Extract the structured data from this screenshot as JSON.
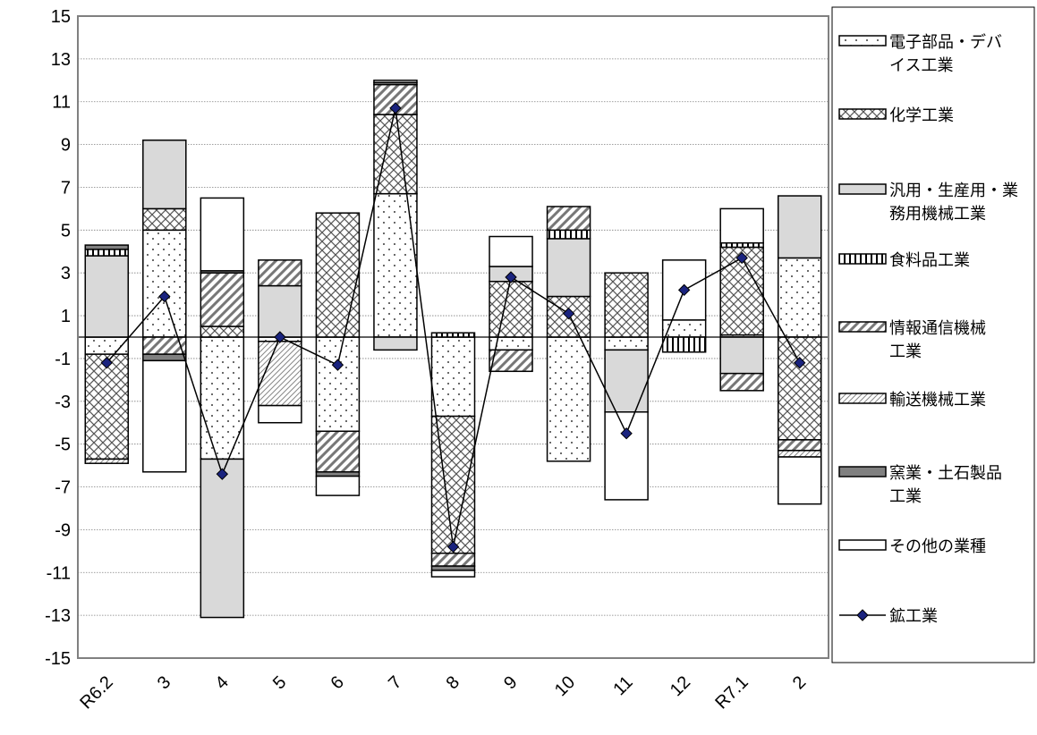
{
  "chart_data": {
    "type": "bar",
    "subtype": "stacked-bar-with-line",
    "title": "",
    "xlabel": "",
    "ylabel": "",
    "ylim": [
      -15,
      15
    ],
    "yticks": [
      15,
      13,
      11,
      9,
      7,
      5,
      3,
      1,
      -1,
      -3,
      -5,
      -7,
      -9,
      -11,
      -13,
      -15
    ],
    "ytick_labels": [
      "15",
      "13",
      "11",
      "9",
      "7",
      "5",
      "3",
      "1",
      "-1",
      "-3",
      "-5",
      "-7",
      "-9",
      "-11",
      "-13",
      "-15"
    ],
    "grid": true,
    "legend_position": "right",
    "categories": [
      "R6.2",
      "3",
      "4",
      "5",
      "6",
      "7",
      "8",
      "9",
      "10",
      "11",
      "12",
      "R7.1",
      "2"
    ],
    "series": [
      {
        "name": "電子部品・デバイス工業",
        "name_lines": [
          "電子部品・デバ",
          "イス工業"
        ],
        "pattern": "dots",
        "values": [
          -0.8,
          5.0,
          -5.7,
          -0.2,
          -4.4,
          6.7,
          -3.7,
          -0.6,
          -5.8,
          -0.6,
          0.8,
          0.1,
          3.7
        ]
      },
      {
        "name": "化学工業",
        "name_lines": [
          "化学工業"
        ],
        "pattern": "crosshatch",
        "values": [
          -4.9,
          1.0,
          0.5,
          0.0,
          5.8,
          3.7,
          -6.4,
          2.6,
          1.9,
          3.0,
          0.0,
          4.1,
          -4.8
        ]
      },
      {
        "name": "汎用・生産用・業務用機械工業",
        "name_lines": [
          "汎用・生産用・業",
          "務用機械工業"
        ],
        "pattern": "gray",
        "values": [
          3.8,
          3.2,
          -7.4,
          2.4,
          0.0,
          -0.6,
          0.0,
          0.7,
          2.7,
          -2.9,
          0.0,
          -1.7,
          2.9
        ]
      },
      {
        "name": "食料品工業",
        "name_lines": [
          "食料品工業"
        ],
        "pattern": "vertical",
        "values": [
          0.3,
          0.0,
          0.0,
          0.0,
          0.0,
          0.0,
          0.2,
          0.0,
          0.4,
          0.0,
          -0.7,
          0.2,
          0.0
        ]
      },
      {
        "name": "情報通信機械工業",
        "name_lines": [
          "情報通信機械",
          "工業"
        ],
        "pattern": "diagonal",
        "values": [
          0.0,
          -0.8,
          2.5,
          1.2,
          -1.9,
          1.4,
          -0.6,
          -1.0,
          1.1,
          0.0,
          0.0,
          -0.8,
          -0.5
        ]
      },
      {
        "name": "輸送機械工業",
        "name_lines": [
          "輸送機械工業"
        ],
        "pattern": "fine",
        "values": [
          -0.2,
          0.0,
          0.0,
          -3.0,
          0.0,
          0.0,
          0.0,
          0.0,
          0.0,
          0.0,
          0.0,
          0.0,
          -0.3
        ]
      },
      {
        "name": "窯業・土石製品工業",
        "name_lines": [
          "窯業・土石製品",
          "工業"
        ],
        "pattern": "darkgray",
        "values": [
          0.2,
          -0.3,
          0.1,
          0.0,
          -0.2,
          0.1,
          -0.2,
          0.0,
          0.0,
          0.0,
          0.0,
          0.0,
          0.0
        ]
      },
      {
        "name": "その他の業種",
        "name_lines": [
          "その他の業種"
        ],
        "pattern": "white",
        "values": [
          0.0,
          -5.2,
          3.4,
          -0.8,
          -0.9,
          0.1,
          -0.3,
          1.4,
          0.0,
          -4.1,
          2.8,
          1.6,
          -2.2
        ]
      }
    ],
    "line": {
      "name": "鉱工業",
      "values": [
        -1.2,
        1.9,
        -6.4,
        0.0,
        -1.3,
        10.7,
        -9.8,
        2.8,
        1.1,
        -4.5,
        2.2,
        3.7,
        -1.2
      ]
    },
    "colors": {
      "line": "#000000",
      "marker": "#1a237e",
      "gray": "#d9d9d9",
      "darkgray": "#808080",
      "border": "#808080"
    }
  }
}
